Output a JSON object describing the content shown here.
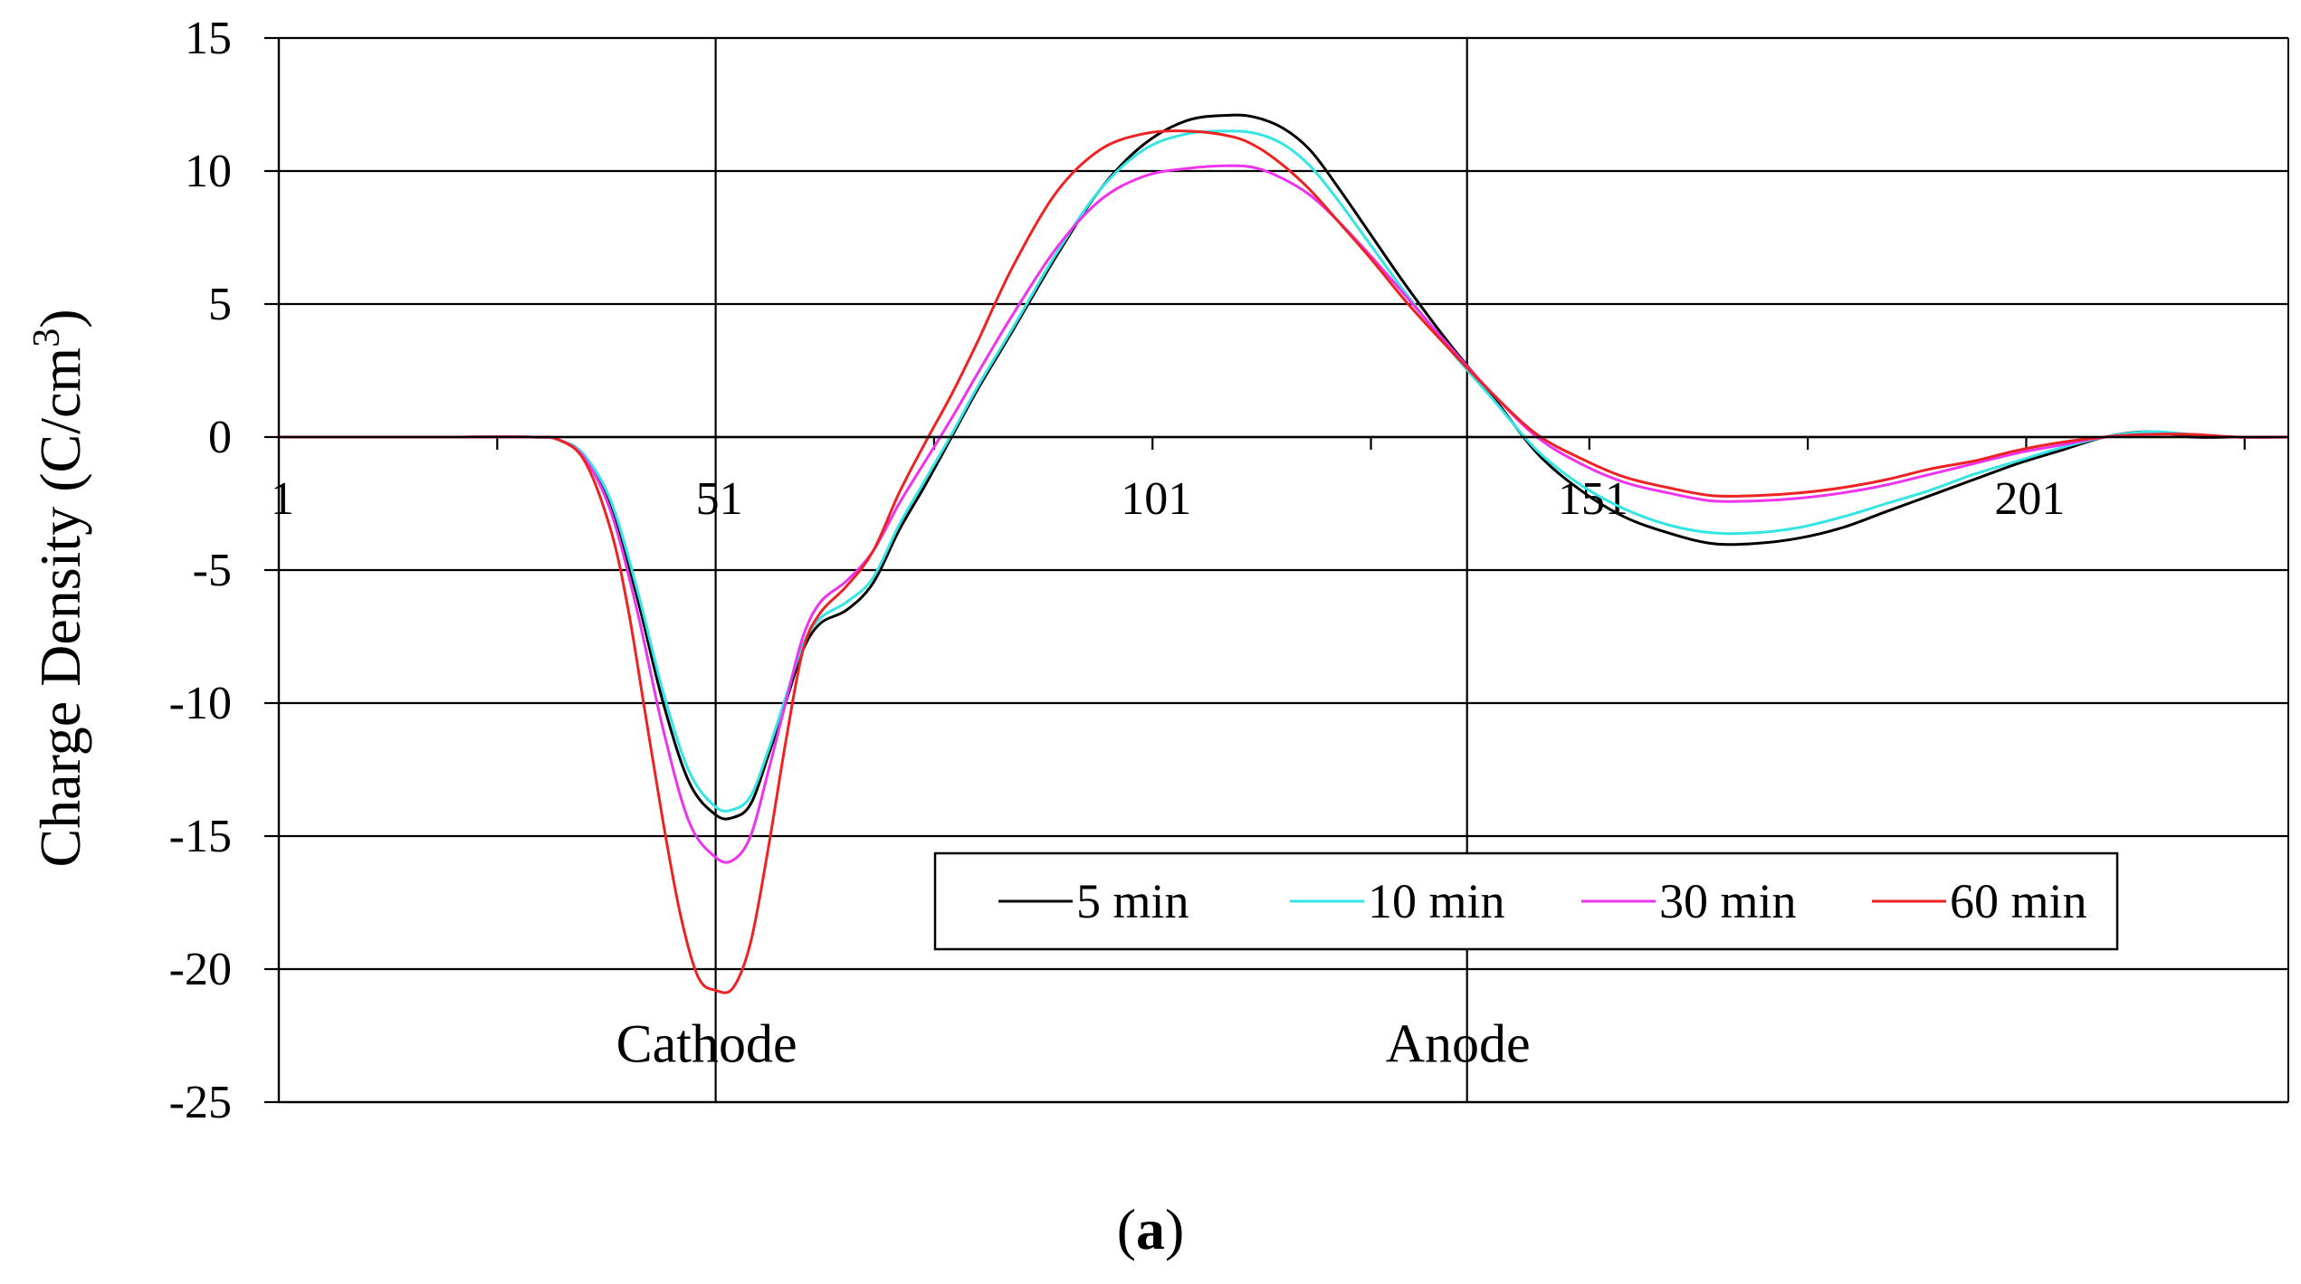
{
  "chart_data": {
    "type": "line",
    "title": "",
    "ylabel": "Charge Density (C/cm3)",
    "ylabel_main": "Charge Density (C/cm",
    "ylabel_sup": "3",
    "ylabel_end": ")",
    "xlabel": "",
    "xlim": [
      1,
      231
    ],
    "ylim": [
      -25,
      15
    ],
    "x_ticks": [
      1,
      51,
      101,
      151,
      201
    ],
    "x_tick_labels": [
      "1",
      "51",
      "101",
      "151",
      "201"
    ],
    "y_ticks": [
      -25,
      -20,
      -15,
      -10,
      -5,
      0,
      5,
      10,
      15
    ],
    "y_tick_labels": [
      "-25",
      "-20",
      "-15",
      "-10",
      "-5",
      "0",
      "5",
      "10",
      "15"
    ],
    "grid": true,
    "legend_position": "bottom-right",
    "annotations": [
      {
        "text": "Cathode",
        "x": 51,
        "y": -22.8
      },
      {
        "text": "Anode",
        "x": 137,
        "y": -22.8
      }
    ],
    "caption_open": "(",
    "caption_letter": "a",
    "caption_close": ")",
    "series": [
      {
        "name": "5 min",
        "color": "#000000",
        "x": [
          1,
          10,
          20,
          30,
          33,
          36,
          39,
          42,
          45,
          48,
          51,
          53,
          55,
          57,
          59,
          61,
          63,
          66,
          69,
          72,
          75,
          78,
          81,
          85,
          90,
          95,
          100,
          105,
          110,
          113,
          116,
          119,
          122,
          126,
          130,
          135,
          140,
          145,
          150,
          155,
          160,
          165,
          170,
          175,
          180,
          185,
          190,
          195,
          200,
          205,
          210,
          215,
          220,
          225,
          231
        ],
        "y": [
          0,
          0,
          0,
          0,
          -0.1,
          -0.7,
          -2.5,
          -6,
          -10,
          -13,
          -14.2,
          -14.3,
          -13.8,
          -12,
          -10,
          -8,
          -7,
          -6.5,
          -5.5,
          -3.5,
          -1.8,
          0,
          1.8,
          4,
          6.8,
          9.3,
          11,
          11.9,
          12.1,
          12,
          11.6,
          10.8,
          9.5,
          7.6,
          5.7,
          3.5,
          1.5,
          -0.6,
          -2,
          -3,
          -3.6,
          -4,
          -4,
          -3.8,
          -3.4,
          -2.8,
          -2.2,
          -1.6,
          -1,
          -0.5,
          0,
          0.2,
          0,
          0,
          0
        ]
      },
      {
        "name": "10 min",
        "color": "#33e5e5",
        "x": [
          1,
          10,
          20,
          30,
          33,
          36,
          39,
          42,
          45,
          48,
          51,
          53,
          55,
          57,
          59,
          61,
          63,
          66,
          69,
          72,
          75,
          78,
          81,
          85,
          90,
          95,
          100,
          105,
          110,
          113,
          116,
          119,
          122,
          126,
          130,
          135,
          140,
          145,
          150,
          155,
          160,
          165,
          170,
          175,
          180,
          185,
          190,
          195,
          200,
          205,
          210,
          215,
          220,
          225,
          231
        ],
        "y": [
          0,
          0,
          0,
          0,
          -0.1,
          -0.7,
          -2.4,
          -5.7,
          -9.6,
          -12.6,
          -13.9,
          -14,
          -13.5,
          -11.8,
          -9.8,
          -7.8,
          -6.8,
          -6.2,
          -5.3,
          -3.3,
          -1.6,
          0.1,
          1.9,
          4.1,
          6.9,
          9.3,
          10.8,
          11.4,
          11.5,
          11.4,
          11,
          10.2,
          9,
          7.2,
          5.4,
          3.3,
          1.4,
          -0.5,
          -1.8,
          -2.7,
          -3.3,
          -3.6,
          -3.6,
          -3.4,
          -3,
          -2.5,
          -2,
          -1.4,
          -0.9,
          -0.4,
          0,
          0.2,
          0.1,
          0,
          0
        ]
      },
      {
        "name": "30 min",
        "color": "#ee33ee",
        "x": [
          1,
          10,
          20,
          30,
          33,
          36,
          39,
          42,
          45,
          48,
          51,
          53,
          55,
          57,
          59,
          61,
          63,
          66,
          69,
          72,
          75,
          78,
          81,
          85,
          90,
          95,
          100,
          105,
          110,
          113,
          116,
          119,
          122,
          126,
          130,
          135,
          140,
          145,
          150,
          155,
          160,
          165,
          170,
          175,
          180,
          185,
          190,
          195,
          200,
          205,
          210,
          215,
          220,
          225,
          231
        ],
        "y": [
          0,
          0,
          0,
          0,
          -0.1,
          -0.8,
          -2.8,
          -6.5,
          -11,
          -14.5,
          -15.8,
          -15.9,
          -15,
          -12.6,
          -10,
          -7.5,
          -6.2,
          -5.4,
          -4.3,
          -2.5,
          -0.9,
          0.7,
          2.4,
          4.6,
          7.1,
          8.9,
          9.8,
          10.1,
          10.2,
          10.1,
          9.7,
          9.1,
          8.2,
          6.8,
          5.3,
          3.4,
          1.6,
          0,
          -1,
          -1.7,
          -2.1,
          -2.4,
          -2.4,
          -2.3,
          -2.1,
          -1.8,
          -1.4,
          -1,
          -0.6,
          -0.3,
          0,
          0.1,
          0.1,
          0,
          0
        ]
      },
      {
        "name": "60 min",
        "color": "#ee2222",
        "x": [
          1,
          10,
          20,
          30,
          33,
          36,
          39,
          41,
          43,
          45,
          47,
          49,
          51,
          53,
          55,
          57,
          59,
          61,
          63,
          66,
          69,
          72,
          75,
          78,
          81,
          85,
          90,
          95,
          100,
          105,
          110,
          113,
          116,
          119,
          122,
          126,
          130,
          135,
          140,
          145,
          150,
          155,
          160,
          165,
          170,
          175,
          180,
          185,
          190,
          195,
          200,
          205,
          210,
          215,
          220,
          225,
          231
        ],
        "y": [
          0,
          0,
          0,
          0,
          -0.1,
          -0.9,
          -3.5,
          -6.5,
          -10.5,
          -14.5,
          -18,
          -20.3,
          -20.8,
          -20.7,
          -19,
          -15.5,
          -11.5,
          -8,
          -6.6,
          -5.6,
          -4.3,
          -2.1,
          -0.2,
          1.6,
          3.6,
          6.4,
          9.2,
          10.8,
          11.4,
          11.5,
          11.3,
          10.9,
          10.2,
          9.3,
          8.2,
          6.7,
          5.1,
          3.3,
          1.6,
          0.1,
          -0.8,
          -1.5,
          -1.9,
          -2.2,
          -2.2,
          -2.1,
          -1.9,
          -1.6,
          -1.2,
          -0.9,
          -0.5,
          -0.2,
          0,
          0.1,
          0.1,
          0,
          0
        ]
      }
    ]
  }
}
